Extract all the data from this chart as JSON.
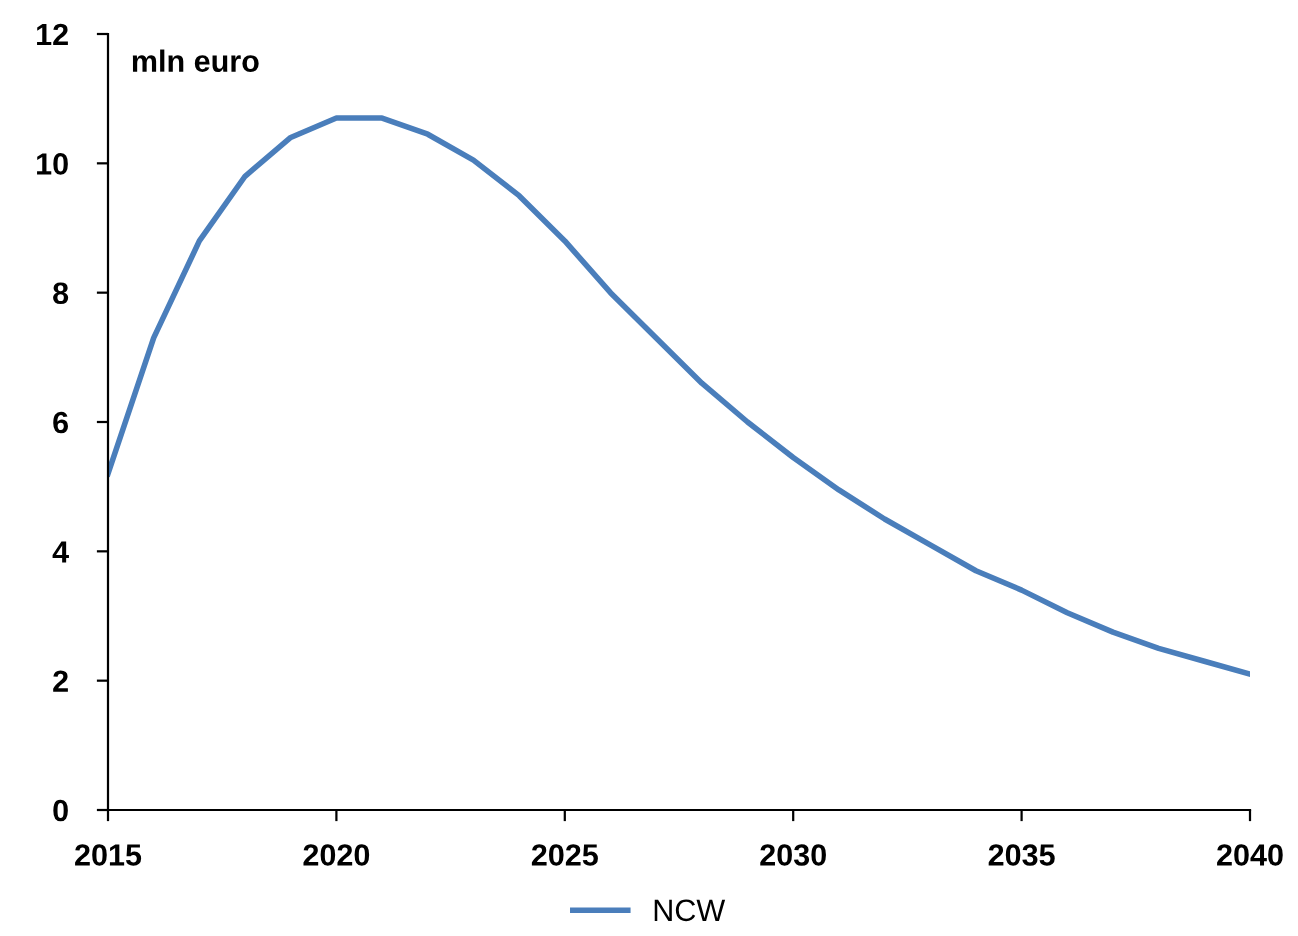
{
  "chart_data": {
    "type": "line",
    "ylabel": "mln euro",
    "x": [
      2015,
      2016,
      2017,
      2018,
      2019,
      2020,
      2021,
      2022,
      2023,
      2024,
      2025,
      2026,
      2027,
      2028,
      2029,
      2030,
      2031,
      2032,
      2033,
      2034,
      2035,
      2036,
      2037,
      2038,
      2039,
      2040
    ],
    "series": [
      {
        "name": "NCW",
        "color": "#4a7ebb",
        "values": [
          5.2,
          7.3,
          8.8,
          9.8,
          10.4,
          10.7,
          10.7,
          10.45,
          10.05,
          9.5,
          8.8,
          8.0,
          7.3,
          6.6,
          6.0,
          5.45,
          4.95,
          4.5,
          4.1,
          3.7,
          3.4,
          3.05,
          2.75,
          2.5,
          2.3,
          2.1
        ]
      }
    ],
    "xlim": [
      2015,
      2040
    ],
    "xticks": [
      2015,
      2020,
      2025,
      2030,
      2035,
      2040
    ],
    "ylim": [
      0,
      12
    ],
    "yticks": [
      0,
      2,
      4,
      6,
      8,
      10,
      12
    ],
    "grid": false,
    "legend": "bottom",
    "marker": "none",
    "line_style": "solid"
  }
}
